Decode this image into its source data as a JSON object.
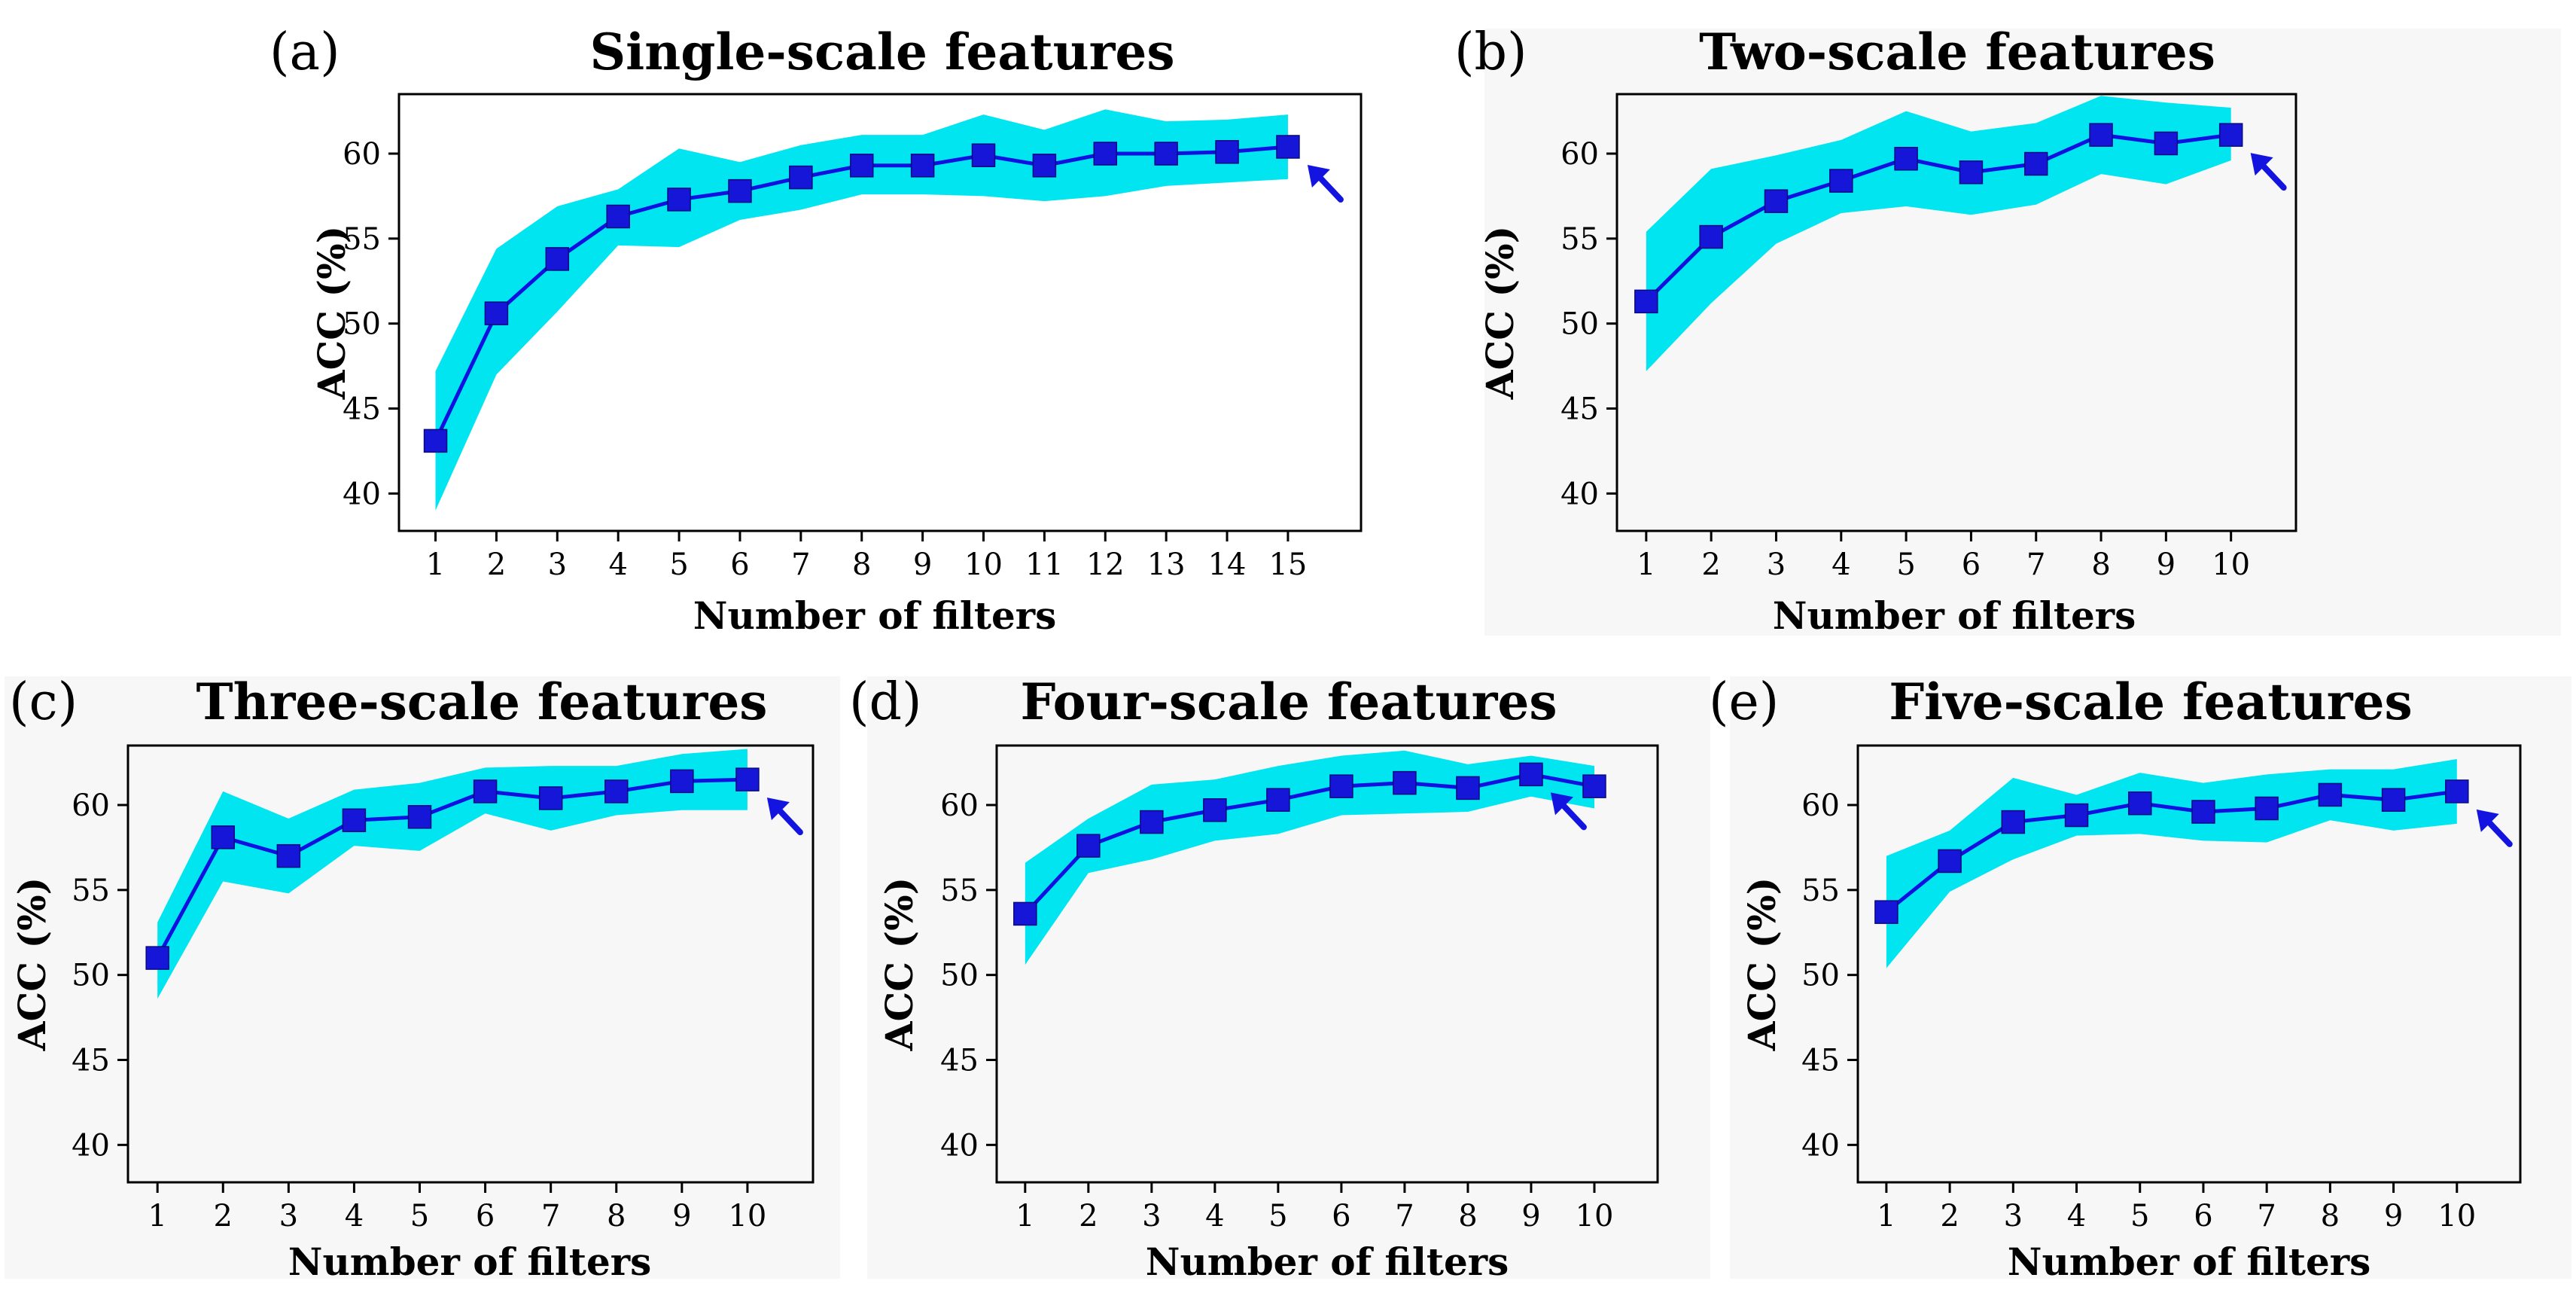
{
  "figure": {
    "background": "#ffffff"
  },
  "style": {
    "band_color": "#00e5f0",
    "line_color": "#1010e0",
    "marker_color": "#1616d8",
    "arrow_color": "#1414e0",
    "plot_background": "#f7f7f7"
  },
  "chart_data": [
    {
      "type": "line",
      "panel_label": "(a)",
      "title": "Single-scale features",
      "xlabel": "Number of filters",
      "ylabel": "ACC (%)",
      "x": [
        1,
        2,
        3,
        4,
        5,
        6,
        7,
        8,
        9,
        10,
        11,
        12,
        13,
        14,
        15
      ],
      "xlim": [
        0.4,
        16.2
      ],
      "ylim": [
        37.8,
        63.5
      ],
      "yticks": [
        40,
        45,
        50,
        55,
        60
      ],
      "series": [
        {
          "name": "mean ACC",
          "values": [
            43.1,
            50.6,
            53.8,
            56.3,
            57.3,
            57.8,
            58.6,
            59.3,
            59.3,
            59.9,
            59.3,
            60.0,
            60.0,
            60.1,
            60.4
          ]
        },
        {
          "name": "upper bound",
          "values": [
            47.2,
            54.4,
            56.9,
            57.9,
            60.3,
            59.5,
            60.5,
            61.1,
            61.1,
            62.3,
            61.4,
            62.6,
            61.9,
            62.0,
            62.3
          ]
        },
        {
          "name": "lower bound",
          "values": [
            39.0,
            47.0,
            50.7,
            54.6,
            54.5,
            56.1,
            56.7,
            57.6,
            57.6,
            57.5,
            57.2,
            57.5,
            58.1,
            58.3,
            58.5
          ]
        }
      ],
      "arrow_at_x": 15,
      "has_background": false
    },
    {
      "type": "line",
      "panel_label": "(b)",
      "title": "Two-scale features",
      "xlabel": "Number of filters",
      "ylabel": "ACC (%)",
      "x": [
        1,
        2,
        3,
        4,
        5,
        6,
        7,
        8,
        9,
        10
      ],
      "xlim": [
        0.55,
        11.0
      ],
      "ylim": [
        37.8,
        63.5
      ],
      "yticks": [
        40,
        45,
        50,
        55,
        60
      ],
      "series": [
        {
          "name": "mean ACC",
          "values": [
            51.3,
            55.1,
            57.2,
            58.4,
            59.7,
            58.9,
            59.4,
            61.1,
            60.6,
            61.1
          ]
        },
        {
          "name": "upper bound",
          "values": [
            55.4,
            59.1,
            59.9,
            60.8,
            62.5,
            61.3,
            61.8,
            63.4,
            63.0,
            62.7
          ]
        },
        {
          "name": "lower bound",
          "values": [
            47.2,
            51.2,
            54.7,
            56.5,
            56.9,
            56.4,
            57.0,
            58.8,
            58.2,
            59.6
          ]
        }
      ],
      "arrow_at_x": 10,
      "has_background": true
    },
    {
      "type": "line",
      "panel_label": "(c)",
      "title": "Three-scale features",
      "xlabel": "Number of filters",
      "ylabel": "ACC (%)",
      "x": [
        1,
        2,
        3,
        4,
        5,
        6,
        7,
        8,
        9,
        10
      ],
      "xlim": [
        0.55,
        11.0
      ],
      "ylim": [
        37.8,
        63.5
      ],
      "yticks": [
        40,
        45,
        50,
        55,
        60
      ],
      "series": [
        {
          "name": "mean ACC",
          "values": [
            51.0,
            58.1,
            57.0,
            59.1,
            59.3,
            60.8,
            60.4,
            60.8,
            61.4,
            61.5
          ]
        },
        {
          "name": "upper bound",
          "values": [
            53.1,
            60.8,
            59.2,
            60.9,
            61.3,
            62.2,
            62.3,
            62.3,
            63.0,
            63.3
          ]
        },
        {
          "name": "lower bound",
          "values": [
            48.6,
            55.5,
            54.8,
            57.6,
            57.3,
            59.5,
            58.5,
            59.4,
            59.7,
            59.7
          ]
        }
      ],
      "arrow_at_x": 10,
      "has_background": true
    },
    {
      "type": "line",
      "panel_label": "(d)",
      "title": "Four-scale features",
      "xlabel": "Number of filters",
      "ylabel": "ACC (%)",
      "x": [
        1,
        2,
        3,
        4,
        5,
        6,
        7,
        8,
        9,
        10
      ],
      "xlim": [
        0.55,
        11.0
      ],
      "ylim": [
        37.8,
        63.5
      ],
      "yticks": [
        40,
        45,
        50,
        55,
        60
      ],
      "series": [
        {
          "name": "mean ACC",
          "values": [
            53.6,
            57.6,
            59.0,
            59.7,
            60.3,
            61.1,
            61.3,
            61.0,
            61.8,
            61.1
          ]
        },
        {
          "name": "upper bound",
          "values": [
            56.6,
            59.2,
            61.2,
            61.5,
            62.3,
            62.9,
            63.2,
            62.4,
            62.9,
            62.3
          ]
        },
        {
          "name": "lower bound",
          "values": [
            50.6,
            56.0,
            56.8,
            57.9,
            58.3,
            59.4,
            59.5,
            59.6,
            60.5,
            59.8
          ]
        }
      ],
      "arrow_at_x": 9,
      "has_background": true
    },
    {
      "type": "line",
      "panel_label": "(e)",
      "title": "Five-scale features",
      "xlabel": "Number of filters",
      "ylabel": "ACC (%)",
      "x": [
        1,
        2,
        3,
        4,
        5,
        6,
        7,
        8,
        9,
        10
      ],
      "xlim": [
        0.55,
        11.0
      ],
      "ylim": [
        37.8,
        63.5
      ],
      "yticks": [
        40,
        45,
        50,
        55,
        60
      ],
      "series": [
        {
          "name": "mean ACC",
          "values": [
            53.7,
            56.7,
            59.0,
            59.4,
            60.1,
            59.6,
            59.8,
            60.6,
            60.3,
            60.8
          ]
        },
        {
          "name": "upper bound",
          "values": [
            57.0,
            58.5,
            61.6,
            60.6,
            61.9,
            61.3,
            61.8,
            62.1,
            62.1,
            62.7
          ]
        },
        {
          "name": "lower bound",
          "values": [
            50.4,
            54.9,
            56.8,
            58.2,
            58.3,
            57.9,
            57.8,
            59.1,
            58.5,
            58.9
          ]
        }
      ],
      "arrow_at_x": 10,
      "has_background": true
    }
  ]
}
